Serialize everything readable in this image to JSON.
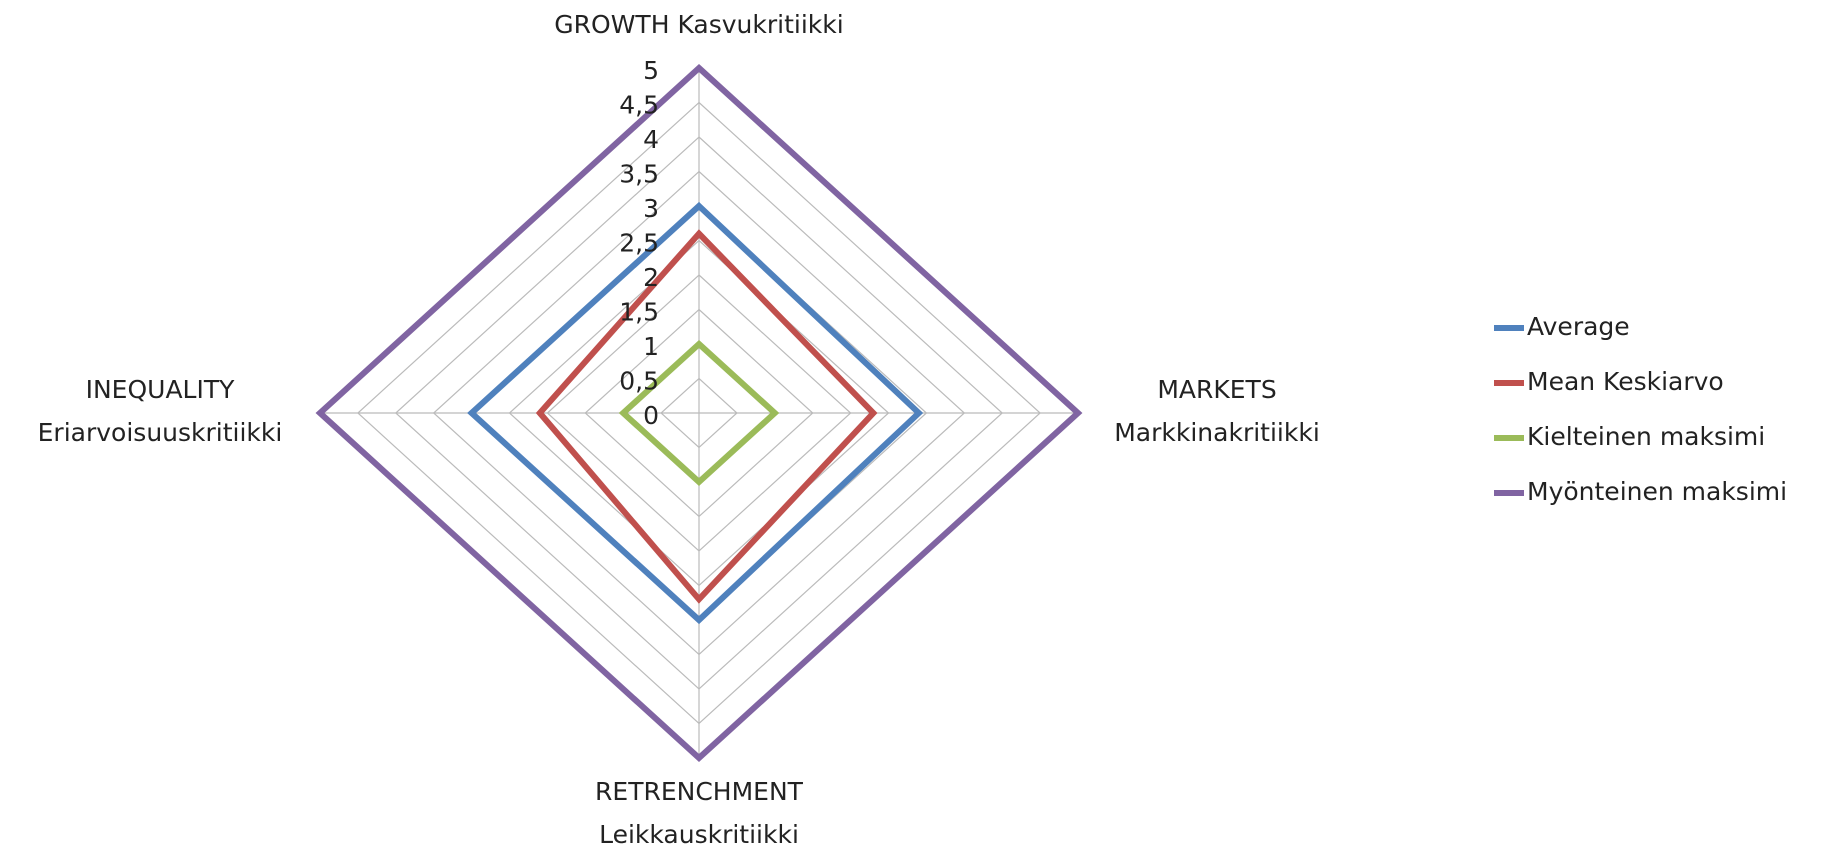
{
  "chart_data": {
    "type": "radar",
    "categories": [
      [
        "GROWTH Kasvukritiikki"
      ],
      [
        "MARKETS",
        "Markkinakritiikki"
      ],
      [
        "RETRENCHMENT",
        "Leikkauskritiikki"
      ],
      [
        "INEQUALITY",
        "Eriarvoisuuskritiikki"
      ]
    ],
    "series": [
      {
        "name": "Average",
        "color": "#4f81bd",
        "values": [
          3,
          2.9,
          3,
          3
        ]
      },
      {
        "name": "Mean Keskiarvo",
        "color": "#c0504d",
        "values": [
          2.6,
          2.3,
          2.7,
          2.1
        ]
      },
      {
        "name": "Kielteinen maksimi",
        "color": "#9bbb59",
        "values": [
          1,
          1,
          1,
          1
        ]
      },
      {
        "name": "Myönteinen maksimi",
        "color": "#8064a2",
        "values": [
          5,
          5,
          5,
          5
        ]
      }
    ],
    "rlim": [
      0,
      5
    ],
    "rticks": [
      0,
      {
        "value": 0.5,
        "label": "0,5"
      },
      1,
      {
        "value": 1.5,
        "label": "1,5"
      },
      2,
      {
        "value": 2.5,
        "label": "2,5"
      },
      3,
      {
        "value": 3.5,
        "label": "3,5"
      },
      4,
      {
        "value": 4.5,
        "label": "4,5"
      },
      5
    ],
    "grid": true,
    "legend": "right"
  }
}
